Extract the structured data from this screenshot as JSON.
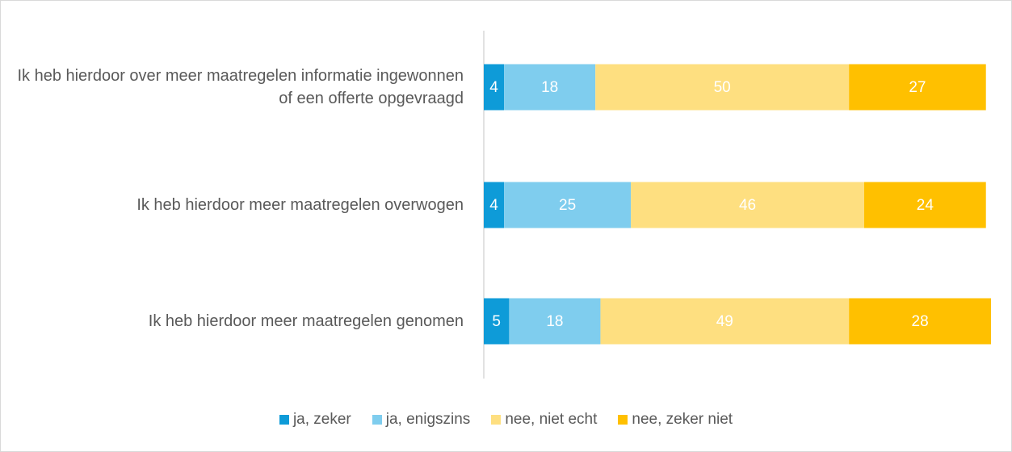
{
  "chart_data": {
    "type": "stacked-bar-horizontal",
    "categories": [
      "Ik heb hierdoor over meer maatregelen informatie ingewonnen of een offerte opgevraagd",
      "Ik heb hierdoor meer maatregelen overwogen",
      "Ik heb hierdoor meer maatregelen genomen"
    ],
    "series": [
      {
        "name": "ja, zeker",
        "color": "#0e9bd8",
        "values": [
          4,
          4,
          5
        ]
      },
      {
        "name": "ja, enigszins",
        "color": "#7fcdee",
        "values": [
          18,
          25,
          18
        ]
      },
      {
        "name": "nee, niet echt",
        "color": "#fedf80",
        "values": [
          50,
          46,
          49
        ]
      },
      {
        "name": "nee, zeker niet",
        "color": "#ffc000",
        "values": [
          27,
          24,
          28
        ]
      }
    ],
    "xlim": [
      0,
      100
    ],
    "legend": "bottom"
  }
}
